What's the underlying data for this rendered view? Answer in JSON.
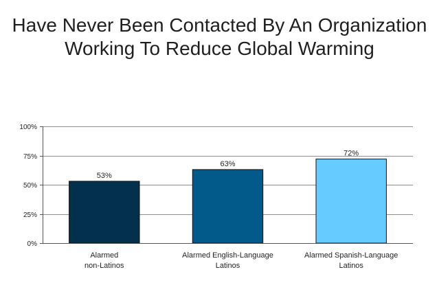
{
  "chart_data": {
    "type": "bar",
    "title_lines": [
      "Have Never Been Contacted By An Organization",
      "Working To Reduce Global Warming"
    ],
    "categories": [
      [
        "Alarmed",
        "non-Latinos"
      ],
      [
        "Alarmed English-Language",
        "Latinos"
      ],
      [
        "Alarmed Spanish-Language",
        "Latinos"
      ]
    ],
    "values": [
      53,
      63,
      72
    ],
    "data_labels": [
      "53%",
      "63%",
      "72%"
    ],
    "bar_colors": [
      "#03304d",
      "#015a8a",
      "#66ccff"
    ],
    "ylim": [
      0,
      100
    ],
    "yticks": [
      0,
      25,
      50,
      75,
      100
    ],
    "ytick_labels": [
      "0%",
      "25%",
      "50%",
      "75%",
      "100%"
    ],
    "xlabel": "",
    "ylabel": "",
    "grid": true,
    "legend": "none"
  }
}
